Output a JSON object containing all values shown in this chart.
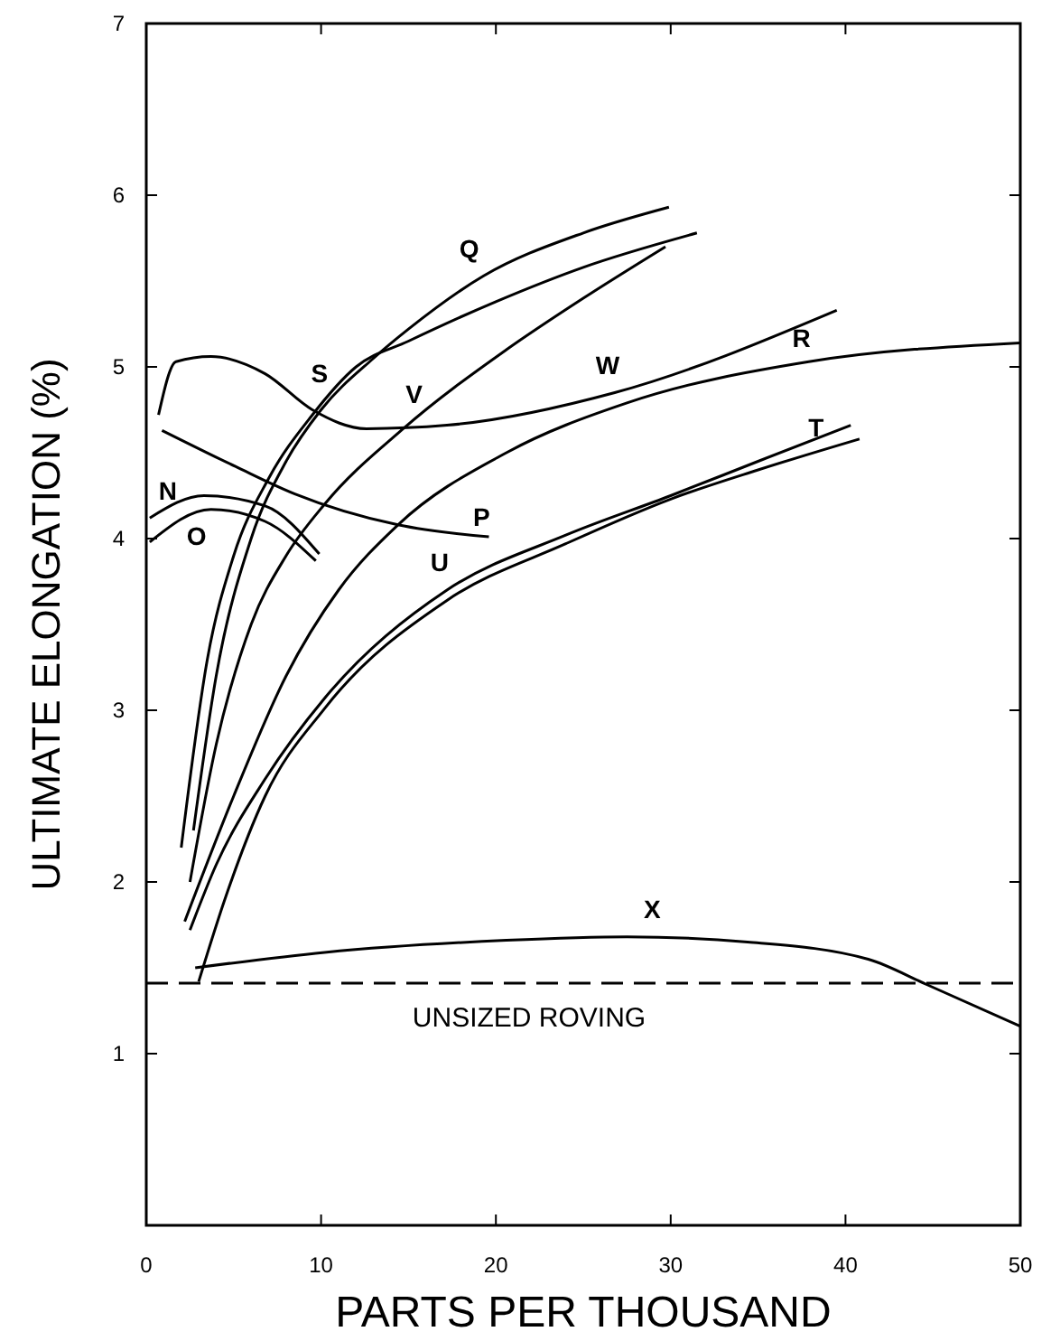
{
  "chart_data": {
    "type": "line",
    "xlabel": "PARTS PER THOUSAND",
    "ylabel": "ULTIMATE ELONGATION (%)",
    "xlim": [
      0,
      50
    ],
    "ylim": [
      0,
      7
    ],
    "xticks": [
      0,
      10,
      20,
      30,
      40,
      50
    ],
    "yticks": [
      1,
      2,
      3,
      4,
      5,
      6,
      7
    ],
    "line_style": "solid",
    "marker": "none",
    "grid": false,
    "series": [
      {
        "name": "Q",
        "color": "#000000",
        "x": [
          2.7,
          4,
          6,
          8,
          10,
          13,
          15,
          19.3,
          25,
          29.9
        ],
        "values": [
          2.3,
          3.2,
          4.0,
          4.45,
          4.75,
          5.05,
          5.22,
          5.53,
          5.78,
          5.93
        ]
      },
      {
        "name": "S",
        "color": "#000000",
        "x": [
          2.0,
          3.5,
          5,
          7,
          9.5,
          12,
          15,
          20,
          25,
          31.5
        ],
        "values": [
          2.2,
          3.3,
          3.9,
          4.35,
          4.72,
          5.0,
          5.15,
          5.38,
          5.58,
          5.78
        ]
      },
      {
        "name": "V",
        "color": "#000000",
        "x": [
          2.5,
          4,
          6,
          8,
          10.2,
          14.7,
          20.6,
          25,
          29.7
        ],
        "values": [
          2.0,
          2.8,
          3.5,
          3.9,
          4.2,
          4.64,
          5.1,
          5.4,
          5.7
        ]
      },
      {
        "name": "R",
        "color": "#000000",
        "x": [
          2.2,
          5,
          8,
          11,
          14.4,
          20.6,
          27.5,
          37.9,
          50
        ],
        "values": [
          1.77,
          2.5,
          3.2,
          3.7,
          4.08,
          4.5,
          4.79,
          5.03,
          5.14
        ]
      },
      {
        "name": "W",
        "color": "#000000",
        "x": [
          0.7,
          1.7,
          3.7,
          6.8,
          9.5,
          12.6,
          17.2,
          26.8,
          39.5
        ],
        "values": [
          4.72,
          5.03,
          5.06,
          4.96,
          4.75,
          4.64,
          4.66,
          4.85,
          5.33
        ]
      },
      {
        "name": "P",
        "color": "#000000",
        "x": [
          0.9,
          5.1,
          8.5,
          14.4,
          19.6
        ],
        "values": [
          4.63,
          4.42,
          4.26,
          4.08,
          4.01
        ]
      },
      {
        "name": "N",
        "color": "#000000",
        "x": [
          0.2,
          3.3,
          6.8,
          9.9
        ],
        "values": [
          4.12,
          4.25,
          4.19,
          3.91
        ]
      },
      {
        "name": "O",
        "color": "#000000",
        "x": [
          0.2,
          3.7,
          6.8,
          9.7
        ],
        "values": [
          3.98,
          4.17,
          4.1,
          3.87
        ]
      },
      {
        "name": "U",
        "color": "#000000",
        "x": [
          2.5,
          4,
          6.8,
          10.2,
          17.2,
          24,
          30,
          35,
          40.3
        ],
        "values": [
          1.72,
          2.1,
          2.6,
          3.07,
          3.7,
          4.02,
          4.25,
          4.45,
          4.66
        ]
      },
      {
        "name": "T",
        "color": "#000000",
        "x": [
          3,
          4.5,
          6.8,
          10.2,
          17.2,
          24,
          30,
          35,
          40.8
        ],
        "values": [
          1.42,
          1.9,
          2.5,
          3.01,
          3.64,
          3.97,
          4.23,
          4.4,
          4.58
        ]
      },
      {
        "name": "X",
        "color": "#000000",
        "x": [
          2.8,
          10.2,
          20.6,
          27.5,
          34.4,
          41.3,
          44.7,
          50
        ],
        "values": [
          1.5,
          1.59,
          1.66,
          1.68,
          1.65,
          1.55,
          1.4,
          1.16
        ]
      }
    ],
    "ref_lines": [
      {
        "axis": "y",
        "value": 1.41,
        "label": "UNSIZED ROVING",
        "color": "#000000",
        "line_style": "dashed"
      }
    ]
  }
}
